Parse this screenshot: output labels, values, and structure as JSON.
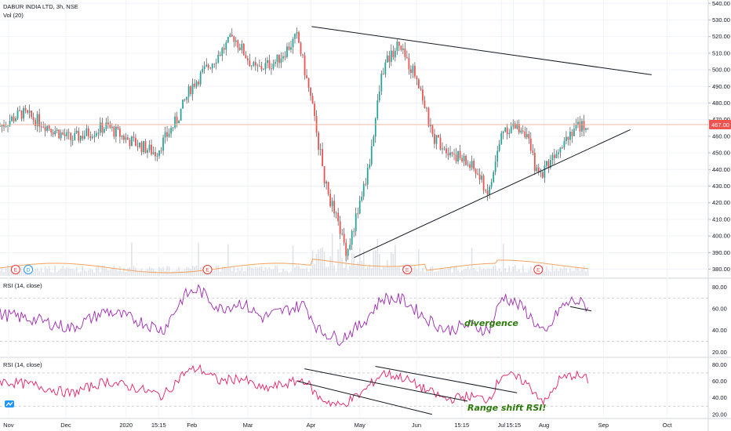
{
  "header": {
    "symbol": "DABUR INDIA LTD, 3h, NSE",
    "volume_label": "Vol (20)"
  },
  "indicators": [
    {
      "label": "RSI (14, close)",
      "annotation": "divergence"
    },
    {
      "label": "RSI (14, close)",
      "annotation": "Range shift RSI!"
    }
  ],
  "event_markers": {
    "earnings_letter": "E",
    "dividend_letter": "D"
  },
  "colors": {
    "up": "#26a69a",
    "down": "#ef5350",
    "candle_wick": "#333333",
    "current_price_line": "#f4a38c",
    "current_price_badge": "#ef5350",
    "volume_ma": "#f5a25d",
    "rsi1": "#9c27b0",
    "rsi2": "#e91e63",
    "trendline": "#131722",
    "annotation_text": "#2b7a0b"
  },
  "chart_data": [
    {
      "type": "candlestick",
      "title": "DABUR INDIA LTD, 3h, NSE",
      "price_axis_ticks": [
        540,
        530,
        520,
        510,
        500,
        490,
        480,
        470,
        460,
        450,
        440,
        430,
        420,
        410,
        400,
        390,
        380
      ],
      "price_axis_labels": [
        "540.00",
        "530.00",
        "520.00",
        "510.00",
        "500.00",
        "490.00",
        "480.00",
        "470.00",
        "460.00",
        "450.00",
        "440.00",
        "430.00",
        "420.00",
        "410.00",
        "400.00",
        "390.00",
        "380.00"
      ],
      "ylim": [
        376,
        542
      ],
      "current_price": 467,
      "current_price_label": "467.00",
      "x_axis_labels": [
        "Nov",
        "Dec",
        "2020",
        "15:15",
        "Feb",
        "Mar",
        "Apr",
        "May",
        "Jun",
        "15:15",
        "Jul",
        "15:15",
        "Aug",
        "Sep",
        "Oct"
      ],
      "price_path_keypoints": [
        {
          "t": 0.0,
          "p": 466
        },
        {
          "t": 0.03,
          "p": 474
        },
        {
          "t": 0.06,
          "p": 468
        },
        {
          "t": 0.1,
          "p": 458
        },
        {
          "t": 0.15,
          "p": 466
        },
        {
          "t": 0.18,
          "p": 458
        },
        {
          "t": 0.22,
          "p": 450
        },
        {
          "t": 0.25,
          "p": 470
        },
        {
          "t": 0.27,
          "p": 490
        },
        {
          "t": 0.3,
          "p": 505
        },
        {
          "t": 0.33,
          "p": 520
        },
        {
          "t": 0.36,
          "p": 500
        },
        {
          "t": 0.39,
          "p": 505
        },
        {
          "t": 0.42,
          "p": 520
        },
        {
          "t": 0.44,
          "p": 480
        },
        {
          "t": 0.46,
          "p": 430
        },
        {
          "t": 0.49,
          "p": 390
        },
        {
          "t": 0.52,
          "p": 440
        },
        {
          "t": 0.54,
          "p": 500
        },
        {
          "t": 0.56,
          "p": 515
        },
        {
          "t": 0.59,
          "p": 495
        },
        {
          "t": 0.61,
          "p": 460
        },
        {
          "t": 0.64,
          "p": 450
        },
        {
          "t": 0.67,
          "p": 440
        },
        {
          "t": 0.69,
          "p": 425
        },
        {
          "t": 0.71,
          "p": 465
        },
        {
          "t": 0.74,
          "p": 465
        },
        {
          "t": 0.76,
          "p": 435
        },
        {
          "t": 0.79,
          "p": 455
        },
        {
          "t": 0.81,
          "p": 465
        },
        {
          "t": 0.83,
          "p": 467
        }
      ],
      "trendlines": [
        {
          "name": "upper",
          "from": {
            "t": 0.44,
            "p": 526
          },
          "to": {
            "t": 0.92,
            "p": 497
          }
        },
        {
          "name": "lower",
          "from": {
            "t": 0.5,
            "p": 387
          },
          "to": {
            "t": 0.89,
            "p": 464
          }
        }
      ]
    },
    {
      "type": "line",
      "title": "RSI (14, close)",
      "y_axis_ticks": [
        80,
        60,
        40,
        20
      ],
      "y_axis_labels": [
        "80.00",
        "60.00",
        "40.00",
        "20.00"
      ],
      "ylim": [
        16,
        86
      ],
      "reference_levels": [
        70,
        30
      ],
      "rsi_path_keypoints": [
        {
          "t": 0.0,
          "p": 55
        },
        {
          "t": 0.05,
          "p": 50
        },
        {
          "t": 0.1,
          "p": 42
        },
        {
          "t": 0.15,
          "p": 58
        },
        {
          "t": 0.2,
          "p": 48
        },
        {
          "t": 0.23,
          "p": 40
        },
        {
          "t": 0.26,
          "p": 72
        },
        {
          "t": 0.28,
          "p": 78
        },
        {
          "t": 0.31,
          "p": 60
        },
        {
          "t": 0.34,
          "p": 66
        },
        {
          "t": 0.37,
          "p": 52
        },
        {
          "t": 0.4,
          "p": 58
        },
        {
          "t": 0.43,
          "p": 64
        },
        {
          "t": 0.45,
          "p": 40
        },
        {
          "t": 0.48,
          "p": 32
        },
        {
          "t": 0.51,
          "p": 45
        },
        {
          "t": 0.54,
          "p": 70
        },
        {
          "t": 0.57,
          "p": 68
        },
        {
          "t": 0.6,
          "p": 52
        },
        {
          "t": 0.63,
          "p": 40
        },
        {
          "t": 0.66,
          "p": 45
        },
        {
          "t": 0.69,
          "p": 40
        },
        {
          "t": 0.71,
          "p": 72
        },
        {
          "t": 0.74,
          "p": 60
        },
        {
          "t": 0.77,
          "p": 35
        },
        {
          "t": 0.79,
          "p": 60
        },
        {
          "t": 0.81,
          "p": 68
        },
        {
          "t": 0.83,
          "p": 62
        }
      ],
      "trendlines": [
        {
          "name": "divergence",
          "from": {
            "t": 0.805,
            "p": 62
          },
          "to": {
            "t": 0.835,
            "p": 58
          }
        }
      ]
    },
    {
      "type": "line",
      "title": "RSI (14, close)",
      "y_axis_ticks": [
        80,
        60,
        40,
        20
      ],
      "y_axis_labels": [
        "80.00",
        "60.00",
        "40.00",
        "20.00"
      ],
      "ylim": [
        16,
        86
      ],
      "reference_levels": [
        70,
        30
      ],
      "rsi_path_keypoints": [
        {
          "t": 0.0,
          "p": 60
        },
        {
          "t": 0.05,
          "p": 55
        },
        {
          "t": 0.1,
          "p": 45
        },
        {
          "t": 0.15,
          "p": 60
        },
        {
          "t": 0.2,
          "p": 50
        },
        {
          "t": 0.23,
          "p": 42
        },
        {
          "t": 0.26,
          "p": 70
        },
        {
          "t": 0.28,
          "p": 76
        },
        {
          "t": 0.31,
          "p": 60
        },
        {
          "t": 0.34,
          "p": 64
        },
        {
          "t": 0.37,
          "p": 50
        },
        {
          "t": 0.4,
          "p": 56
        },
        {
          "t": 0.43,
          "p": 62
        },
        {
          "t": 0.45,
          "p": 40
        },
        {
          "t": 0.48,
          "p": 30
        },
        {
          "t": 0.51,
          "p": 45
        },
        {
          "t": 0.54,
          "p": 70
        },
        {
          "t": 0.57,
          "p": 64
        },
        {
          "t": 0.6,
          "p": 50
        },
        {
          "t": 0.63,
          "p": 38
        },
        {
          "t": 0.66,
          "p": 42
        },
        {
          "t": 0.69,
          "p": 38
        },
        {
          "t": 0.71,
          "p": 70
        },
        {
          "t": 0.74,
          "p": 60
        },
        {
          "t": 0.77,
          "p": 34
        },
        {
          "t": 0.79,
          "p": 62
        },
        {
          "t": 0.81,
          "p": 68
        },
        {
          "t": 0.83,
          "p": 62
        }
      ],
      "trendlines": [
        {
          "name": "channel-upper-1",
          "from": {
            "t": 0.43,
            "p": 75
          },
          "to": {
            "t": 0.66,
            "p": 36
          }
        },
        {
          "name": "channel-lower-1",
          "from": {
            "t": 0.42,
            "p": 60
          },
          "to": {
            "t": 0.61,
            "p": 20
          }
        },
        {
          "name": "channel-upper-2",
          "from": {
            "t": 0.53,
            "p": 78
          },
          "to": {
            "t": 0.73,
            "p": 46
          }
        }
      ]
    }
  ]
}
